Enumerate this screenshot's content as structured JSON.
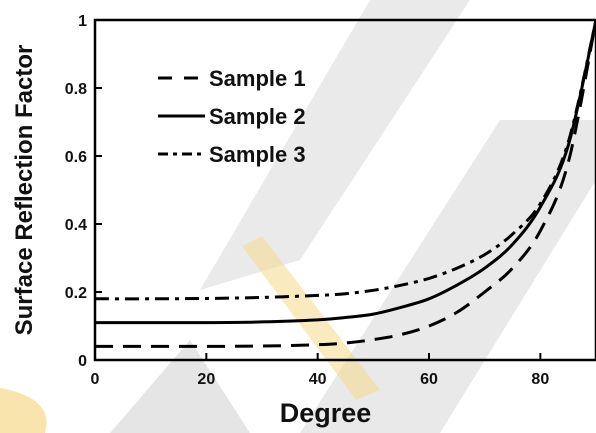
{
  "chart_data": {
    "type": "line",
    "title": "",
    "xlabel": "Degree",
    "ylabel": "Surface Reflection Factor",
    "xlim": [
      0,
      90
    ],
    "ylim": [
      0,
      1
    ],
    "xticks": [
      0,
      20,
      40,
      60,
      80
    ],
    "yticks": [
      0,
      0.2,
      0.4,
      0.6,
      0.8,
      1
    ],
    "ytick_labels": [
      "0",
      "0.2",
      "0.4",
      "0.6",
      "0.8",
      "1"
    ],
    "grid": false,
    "legend_placement": "top-left",
    "x": [
      0,
      10,
      20,
      30,
      40,
      45,
      50,
      55,
      60,
      65,
      70,
      75,
      80,
      85,
      90
    ],
    "series": [
      {
        "name": "Sample 1",
        "style": "dashed",
        "color": "#000000",
        "values": [
          0.04,
          0.04,
          0.04,
          0.041,
          0.045,
          0.05,
          0.06,
          0.075,
          0.1,
          0.14,
          0.2,
          0.27,
          0.38,
          0.58,
          1.0
        ]
      },
      {
        "name": "Sample 2",
        "style": "solid",
        "color": "#000000",
        "values": [
          0.11,
          0.11,
          0.11,
          0.112,
          0.118,
          0.125,
          0.135,
          0.155,
          0.18,
          0.22,
          0.27,
          0.34,
          0.45,
          0.63,
          1.0
        ]
      },
      {
        "name": "Sample 3",
        "style": "dashdot",
        "color": "#000000",
        "values": [
          0.18,
          0.18,
          0.181,
          0.184,
          0.19,
          0.195,
          0.205,
          0.22,
          0.24,
          0.27,
          0.31,
          0.37,
          0.46,
          0.64,
          1.0
        ]
      }
    ]
  }
}
